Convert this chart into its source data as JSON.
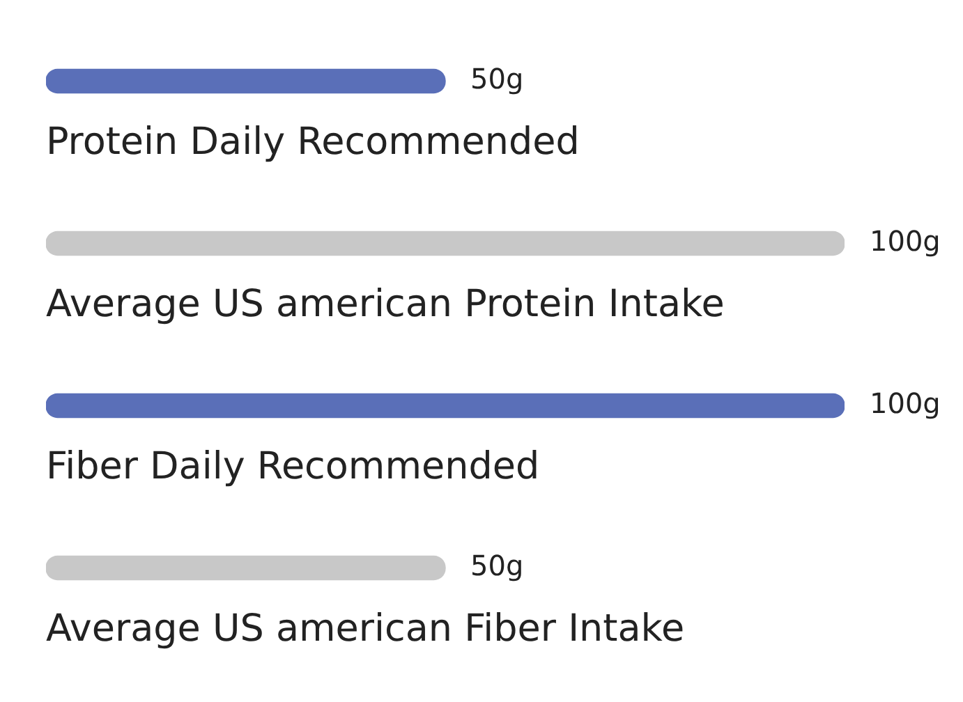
{
  "chart_data": {
    "type": "bar",
    "orientation": "horizontal",
    "tick_labels": false,
    "categories": [
      "Protein Daily Recommended",
      "Average US american Protein Intake",
      "Fiber Daily Recommended",
      "Average US american Fiber Intake"
    ],
    "values": [
      50,
      100,
      100,
      50
    ],
    "colors": [
      "#5a6fb8",
      "#c8c8c8",
      "#5a6fb8",
      "#c8c8c8"
    ],
    "value_labels": [
      "50g",
      "100g",
      "100g",
      "50g"
    ]
  }
}
